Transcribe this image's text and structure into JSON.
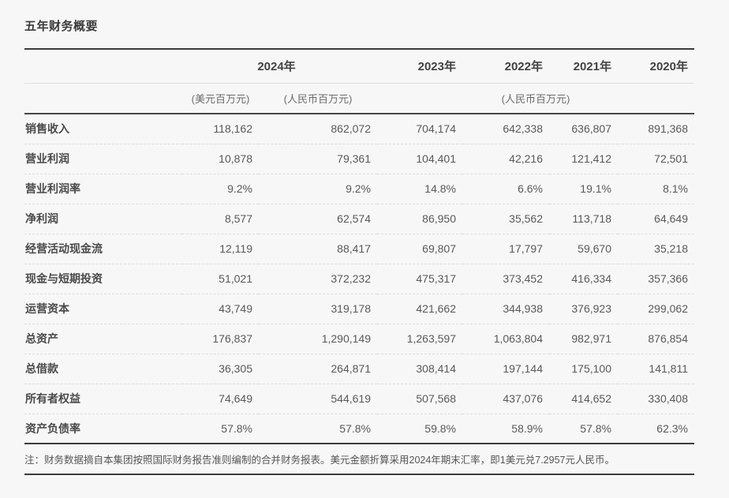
{
  "page": {
    "title": "五年财务概要",
    "background_color": "#f7f7f7",
    "rule_color": "#3c3c3c"
  },
  "table": {
    "year_headers": [
      "2024年",
      "2023年",
      "2022年",
      "2021年",
      "2020年"
    ],
    "unit_headers": {
      "usd": "(美元百万元)",
      "rmb": "(人民币百万元)",
      "rmb_group": "(人民币百万元)"
    },
    "column_keys": [
      "2024-usd",
      "2024-rmb",
      "2023",
      "2022",
      "2021",
      "2020"
    ],
    "rows": [
      {
        "label": "销售收入",
        "values": [
          "118,162",
          "862,072",
          "704,174",
          "642,338",
          "636,807",
          "891,368"
        ]
      },
      {
        "label": "营业利润",
        "values": [
          "10,878",
          "79,361",
          "104,401",
          "42,216",
          "121,412",
          "72,501"
        ]
      },
      {
        "label": "营业利润率",
        "values": [
          "9.2%",
          "9.2%",
          "14.8%",
          "6.6%",
          "19.1%",
          "8.1%"
        ]
      },
      {
        "label": "净利润",
        "values": [
          "8,577",
          "62,574",
          "86,950",
          "35,562",
          "113,718",
          "64,649"
        ]
      },
      {
        "label": "经营活动现金流",
        "values": [
          "12,119",
          "88,417",
          "69,807",
          "17,797",
          "59,670",
          "35,218"
        ]
      },
      {
        "label": "现金与短期投资",
        "values": [
          "51,021",
          "372,232",
          "475,317",
          "373,452",
          "416,334",
          "357,366"
        ]
      },
      {
        "label": "运营资本",
        "values": [
          "43,749",
          "319,178",
          "421,662",
          "344,938",
          "376,923",
          "299,062"
        ]
      },
      {
        "label": "总资产",
        "values": [
          "176,837",
          "1,290,149",
          "1,263,597",
          "1,063,804",
          "982,971",
          "876,854"
        ]
      },
      {
        "label": "总借款",
        "values": [
          "36,305",
          "264,871",
          "308,414",
          "197,144",
          "175,100",
          "141,811"
        ]
      },
      {
        "label": "所有者权益",
        "values": [
          "74,649",
          "544,619",
          "507,568",
          "437,076",
          "414,652",
          "330,408"
        ]
      },
      {
        "label": "资产负债率",
        "values": [
          "57.8%",
          "57.8%",
          "59.8%",
          "58.9%",
          "57.8%",
          "62.3%"
        ]
      }
    ]
  },
  "footnote": "注：财务数据摘自本集团按照国际财务报告准则编制的合并财务报表。美元金额折算采用2024年期末汇率，即1美元兑7.2957元人民币。"
}
